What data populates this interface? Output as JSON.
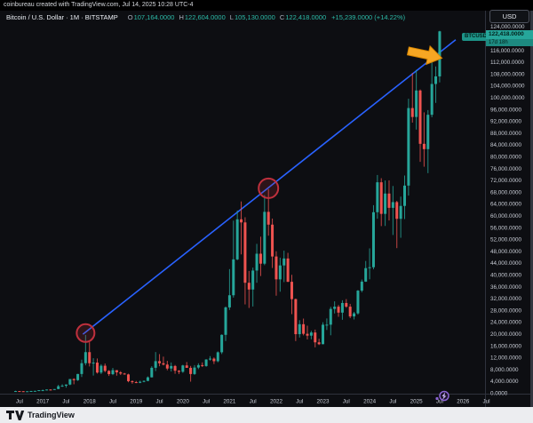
{
  "meta_bar": {
    "text": "coinbureau created with TradingView.com, Jul 14, 2025 10:28 UTC-4"
  },
  "symbol_row": {
    "title": "Bitcoin / U.S. Dollar · 1M · BITSTAMP",
    "ohlc": [
      {
        "label": "O",
        "value": "107,164.0000"
      },
      {
        "label": "H",
        "value": "122,604.0000"
      },
      {
        "label": "L",
        "value": "105,130.0000"
      },
      {
        "label": "C",
        "value": "122,418.0000"
      }
    ],
    "change": "+15,239.0000 (+14.22%)"
  },
  "currency_button": {
    "label": "USD"
  },
  "price_label": {
    "symbol_tag": "BTCUSD",
    "price": "122,418.0000",
    "countdown": "17d 18h"
  },
  "price_scale": {
    "labels": [
      "124,000.0000",
      "120,000.0000",
      "116,000.0000",
      "112,000.0000",
      "108,000.0000",
      "104,000.0000",
      "100,000.0000",
      "96,000.0000",
      "92,000.0000",
      "88,000.0000",
      "84,000.0000",
      "80,000.0000",
      "76,000.0000",
      "72,000.0000",
      "68,000.0000",
      "64,000.0000",
      "60,000.0000",
      "56,000.0000",
      "52,000.0000",
      "48,000.0000",
      "44,000.0000",
      "40,000.0000",
      "36,000.0000",
      "32,000.0000",
      "28,000.0000",
      "24,000.0000",
      "20,000.0000",
      "16,000.0000",
      "12,000.0000",
      "8,000.0000",
      "4,000.0000",
      "0.0000",
      "-4,000.0000"
    ]
  },
  "time_scale": {
    "labels": [
      "Jul",
      "2017",
      "Jul",
      "2018",
      "Jul",
      "2019",
      "Jul",
      "2020",
      "Jul",
      "2021",
      "Jul",
      "2022",
      "Jul",
      "2023",
      "Jul",
      "2024",
      "Jul",
      "2025",
      "Jul",
      "2026",
      "Jul"
    ]
  },
  "footer": {
    "brand": "TradingView"
  },
  "colors": {
    "up": "#26a69a",
    "down": "#ef5350",
    "trendline": "#2962ff",
    "circle": "#c0303d",
    "arrow_fill": "#f5a623",
    "arrow_stroke": "#d78500",
    "badge": "#8a63d2",
    "axis_text": "#c9cdd6",
    "price_label_bg": "#26a69a",
    "countdown_bg": "#1d8a80"
  },
  "chart_data": {
    "type": "candlestick",
    "title": "Bitcoin / U.S. Dollar",
    "symbol": "BTCUSD",
    "exchange": "BITSTAMP",
    "interval": "1M",
    "ylim": [
      -4000,
      124000
    ],
    "y_tick_step": 4000,
    "grid": false,
    "start_month": "2016-06",
    "last_price": 122418,
    "ohlc": [
      [
        530,
        780,
        520,
        670
      ],
      [
        670,
        705,
        590,
        620
      ],
      [
        620,
        640,
        540,
        575
      ],
      [
        575,
        630,
        565,
        610
      ],
      [
        610,
        720,
        595,
        700
      ],
      [
        700,
        755,
        670,
        745
      ],
      [
        745,
        980,
        740,
        965
      ],
      [
        965,
        1190,
        750,
        970
      ],
      [
        970,
        1220,
        920,
        1190
      ],
      [
        1190,
        1290,
        890,
        1080
      ],
      [
        1080,
        1350,
        1060,
        1350
      ],
      [
        1350,
        2780,
        1340,
        2300
      ],
      [
        2300,
        2990,
        2100,
        2480
      ],
      [
        2480,
        2920,
        1830,
        2875
      ],
      [
        2875,
        4750,
        2650,
        4735
      ],
      [
        4735,
        4980,
        2970,
        4360
      ],
      [
        4360,
        6480,
        4110,
        6450
      ],
      [
        6450,
        11300,
        5430,
        10100
      ],
      [
        10100,
        19666,
        9380,
        13850
      ],
      [
        13850,
        17200,
        9000,
        10100
      ],
      [
        10100,
        11790,
        5920,
        10300
      ],
      [
        10300,
        11700,
        6600,
        6930
      ],
      [
        6930,
        9760,
        6430,
        9240
      ],
      [
        9240,
        9990,
        7050,
        7500
      ],
      [
        7500,
        7750,
        5780,
        6400
      ],
      [
        6400,
        8500,
        6070,
        7750
      ],
      [
        7750,
        7770,
        5880,
        7010
      ],
      [
        7010,
        7410,
        6100,
        6600
      ],
      [
        6600,
        6820,
        6200,
        6300
      ],
      [
        6300,
        6540,
        3650,
        4020
      ],
      [
        4020,
        4300,
        3150,
        3690
      ],
      [
        3690,
        4100,
        3350,
        3460
      ],
      [
        3460,
        4190,
        3350,
        3815
      ],
      [
        3815,
        4290,
        3660,
        4100
      ],
      [
        4100,
        5620,
        4050,
        5320
      ],
      [
        5320,
        9070,
        5270,
        8550
      ],
      [
        8550,
        13880,
        7430,
        10800
      ],
      [
        10800,
        13180,
        9070,
        10080
      ],
      [
        10080,
        12320,
        9350,
        9630
      ],
      [
        9630,
        10900,
        7700,
        8300
      ],
      [
        8300,
        10350,
        7290,
        9150
      ],
      [
        9150,
        9500,
        6520,
        7560
      ],
      [
        7560,
        7740,
        6430,
        7195
      ],
      [
        7195,
        9570,
        6850,
        9350
      ],
      [
        9350,
        10500,
        8520,
        8530
      ],
      [
        8530,
        9180,
        3850,
        6440
      ],
      [
        6440,
        9460,
        6140,
        8630
      ],
      [
        8630,
        10070,
        8100,
        9450
      ],
      [
        9450,
        10380,
        8830,
        9140
      ],
      [
        9140,
        11450,
        8900,
        11350
      ],
      [
        11350,
        12480,
        11000,
        11650
      ],
      [
        11650,
        12050,
        9825,
        10780
      ],
      [
        10780,
        14100,
        10400,
        13800
      ],
      [
        13800,
        19860,
        13200,
        19700
      ],
      [
        19700,
        29300,
        17600,
        28990
      ],
      [
        28990,
        41950,
        28130,
        33100
      ],
      [
        33100,
        58350,
        32300,
        45240
      ],
      [
        45240,
        61780,
        44950,
        58800
      ],
      [
        58800,
        64850,
        46930,
        57750
      ],
      [
        57750,
        59500,
        30000,
        37330
      ],
      [
        37330,
        41330,
        28800,
        35040
      ],
      [
        35040,
        42450,
        29300,
        41460
      ],
      [
        41460,
        50500,
        37330,
        47160
      ],
      [
        47160,
        52920,
        39600,
        43790
      ],
      [
        43790,
        66990,
        43280,
        61320
      ],
      [
        61320,
        69000,
        53260,
        57000
      ],
      [
        57000,
        59050,
        42330,
        46220
      ],
      [
        46220,
        47990,
        32950,
        38480
      ],
      [
        38480,
        45820,
        34300,
        43190
      ],
      [
        43190,
        48190,
        37550,
        45540
      ],
      [
        45540,
        47450,
        37580,
        37650
      ],
      [
        37650,
        40020,
        26700,
        31790
      ],
      [
        31790,
        31980,
        17590,
        19925
      ],
      [
        19925,
        24670,
        18780,
        23300
      ],
      [
        23300,
        25200,
        19520,
        20050
      ],
      [
        20050,
        22800,
        18125,
        19425
      ],
      [
        19425,
        21085,
        18190,
        20490
      ],
      [
        20490,
        21480,
        15475,
        17165
      ],
      [
        17165,
        18390,
        16250,
        16540
      ],
      [
        16540,
        23960,
        16490,
        23130
      ],
      [
        23130,
        25250,
        21350,
        23140
      ],
      [
        23140,
        29180,
        19550,
        28475
      ],
      [
        28475,
        31050,
        26940,
        29230
      ],
      [
        29230,
        29820,
        25800,
        27220
      ],
      [
        27220,
        31400,
        24800,
        30480
      ],
      [
        30480,
        31800,
        28860,
        29230
      ],
      [
        29230,
        30180,
        25350,
        25930
      ],
      [
        25930,
        27480,
        24900,
        26970
      ],
      [
        26970,
        34870,
        26540,
        34660
      ],
      [
        34660,
        38415,
        34100,
        37715
      ],
      [
        37715,
        44700,
        37615,
        42280
      ],
      [
        42280,
        48970,
        38500,
        42580
      ],
      [
        42580,
        63585,
        41880,
        61200
      ],
      [
        61200,
        73800,
        59005,
        71330
      ],
      [
        71330,
        72715,
        56500,
        60640
      ],
      [
        60640,
        71950,
        56555,
        67520
      ],
      [
        67520,
        71980,
        58400,
        62680
      ],
      [
        62680,
        70080,
        53500,
        64620
      ],
      [
        64620,
        65050,
        49050,
        58970
      ],
      [
        58970,
        66480,
        52550,
        63330
      ],
      [
        63330,
        73620,
        58900,
        70215
      ],
      [
        70215,
        99600,
        66835,
        96450
      ],
      [
        96450,
        108365,
        91530,
        93430
      ],
      [
        93430,
        109358,
        89165,
        102400
      ],
      [
        102400,
        102750,
        78250,
        84350
      ],
      [
        84350,
        95000,
        76600,
        82550
      ],
      [
        82550,
        95768,
        74420,
        94180
      ],
      [
        94180,
        112000,
        93350,
        104600
      ],
      [
        104600,
        110530,
        98200,
        107170
      ],
      [
        107164,
        122604,
        105130,
        122418
      ]
    ],
    "annotations": {
      "trendline": {
        "from_month": "2017-12",
        "from_price": 20600,
        "to_month": "2021-11",
        "to_price": 69500
      },
      "circles": [
        {
          "month": "2017-12",
          "price": 20300,
          "r": 10
        },
        {
          "month": "2021-11",
          "price": 69300,
          "r": 11
        }
      ],
      "arrow": {
        "direction": "right",
        "meaning": "trendline breakout"
      },
      "badge": {
        "type": "lightning",
        "month": "2025-07"
      }
    }
  }
}
